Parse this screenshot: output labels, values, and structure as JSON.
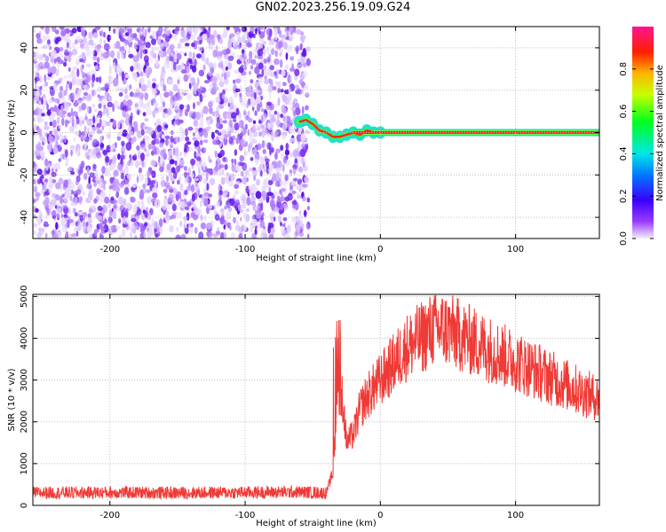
{
  "title": "GN02.2023.256.19.09.G24",
  "chart_data": [
    {
      "type": "heatmap",
      "xlabel": "Height of straight line (km)",
      "ylabel": "Frequency (Hz)",
      "xlim": [
        -257,
        162
      ],
      "ylim": [
        -50,
        50
      ],
      "xticks": [
        -200,
        -100,
        0,
        100
      ],
      "yticks": [
        -40,
        -20,
        0,
        20,
        40
      ],
      "noise_region_x": [
        -257,
        -57
      ],
      "signal_onset_x": -57,
      "signal_track": {
        "x": [
          -60,
          -55,
          -50,
          -45,
          -40,
          -35,
          -30,
          -25,
          -20,
          -15,
          -10,
          -5,
          0,
          160
        ],
        "freq": [
          5,
          6,
          4,
          1,
          0,
          -2,
          -2,
          -1,
          0,
          -1,
          1,
          0,
          0,
          0
        ]
      },
      "colorbar": {
        "label": "Normalized spectral amplitude",
        "range": [
          0,
          1
        ],
        "ticks": [
          "0.0",
          "0.2",
          "0.4",
          "0.6",
          "0.8"
        ]
      }
    },
    {
      "type": "line",
      "xlabel": "Height of straight line (km)",
      "ylabel": "SNR (10 * v/v)",
      "xlim": [
        -257,
        162
      ],
      "ylim": [
        0,
        5050
      ],
      "xticks": [
        -200,
        -100,
        0,
        100
      ],
      "yticks": [
        0,
        1000,
        2000,
        3000,
        4000,
        5000
      ],
      "color": "#ef3a36",
      "series": [
        {
          "name": "SNR",
          "x": [
            -257,
            -200,
            -150,
            -100,
            -60,
            -40,
            -35,
            -32,
            -28,
            -25,
            -20,
            -15,
            -10,
            -5,
            0,
            10,
            20,
            30,
            40,
            50,
            60,
            70,
            80,
            90,
            100,
            110,
            120,
            130,
            140,
            150,
            162
          ],
          "values": [
            300,
            310,
            300,
            310,
            320,
            300,
            800,
            2400,
            2600,
            1500,
            1700,
            2300,
            2600,
            2800,
            3000,
            3400,
            3800,
            4000,
            4250,
            4200,
            4050,
            3900,
            3750,
            3600,
            3450,
            3300,
            3150,
            3000,
            2850,
            2700,
            2550
          ]
        }
      ]
    }
  ]
}
